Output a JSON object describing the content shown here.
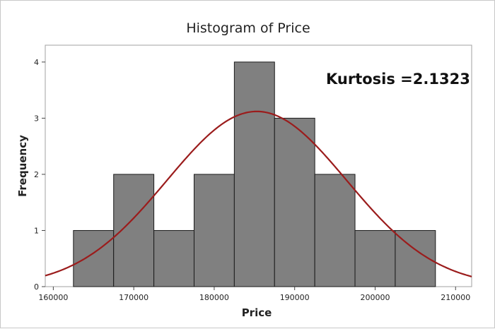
{
  "chart_data": {
    "type": "bar",
    "title": "Histogram of Price",
    "xlabel": "Price",
    "ylabel": "Frequency",
    "annotation": "Kurtosis =2.1323",
    "bins": [
      {
        "start": 162500,
        "end": 167500,
        "value": 1
      },
      {
        "start": 167500,
        "end": 172500,
        "value": 2
      },
      {
        "start": 172500,
        "end": 177500,
        "value": 1
      },
      {
        "start": 177500,
        "end": 182500,
        "value": 2
      },
      {
        "start": 182500,
        "end": 187500,
        "value": 4
      },
      {
        "start": 187500,
        "end": 192500,
        "value": 3
      },
      {
        "start": 192500,
        "end": 197500,
        "value": 2
      },
      {
        "start": 197500,
        "end": 202500,
        "value": 1
      },
      {
        "start": 202500,
        "end": 207500,
        "value": 1
      }
    ],
    "xlim": [
      159000,
      212000
    ],
    "ylim": [
      0,
      4.3
    ],
    "xticks": [
      "160000",
      "170000",
      "180000",
      "190000",
      "200000",
      "210000"
    ],
    "yticks": [
      "0",
      "1",
      "2",
      "3",
      "4"
    ],
    "fit_curve": {
      "type": "normal",
      "mean": 185294,
      "std": 11170,
      "peak_frequency": 3.12
    },
    "grid": false,
    "colors": {
      "bar_fill": "#808080",
      "bar_stroke": "#1a1a1a",
      "curve": "#9b1c1c"
    }
  }
}
